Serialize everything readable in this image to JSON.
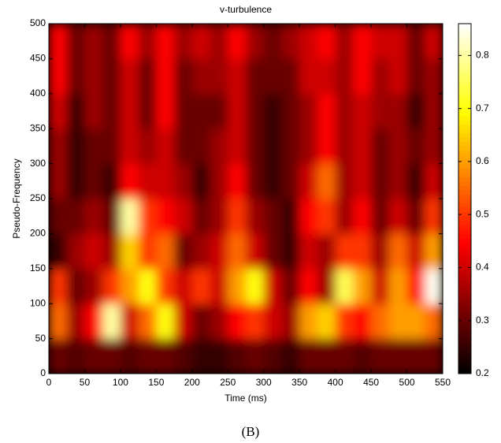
{
  "chart_data": {
    "type": "heatmap",
    "title": "v-turbulence",
    "xlabel": "Time (ms)",
    "ylabel": "Pseudo-Frequency",
    "caption": "(B)",
    "colormap": "hot",
    "xbins": [
      0,
      25,
      50,
      75,
      100,
      125,
      150,
      175,
      200,
      225,
      250,
      275,
      300,
      325,
      350,
      375,
      400,
      425,
      450,
      475,
      500,
      525,
      550
    ],
    "ybins": [
      0,
      50,
      100,
      150,
      200,
      250,
      300,
      350,
      400,
      450,
      500
    ],
    "values": [
      [
        0.3,
        0.28,
        0.3,
        0.3,
        0.28,
        0.3,
        0.3,
        0.28,
        0.25,
        0.25,
        0.28,
        0.3,
        0.28,
        0.25,
        0.3,
        0.3,
        0.3,
        0.28,
        0.3,
        0.3,
        0.3,
        0.3
      ],
      [
        0.55,
        0.35,
        0.45,
        0.8,
        0.4,
        0.55,
        0.7,
        0.4,
        0.3,
        0.35,
        0.45,
        0.5,
        0.4,
        0.35,
        0.6,
        0.65,
        0.5,
        0.45,
        0.55,
        0.6,
        0.6,
        0.55
      ],
      [
        0.5,
        0.3,
        0.35,
        0.5,
        0.6,
        0.7,
        0.5,
        0.4,
        0.5,
        0.4,
        0.6,
        0.7,
        0.4,
        0.3,
        0.45,
        0.35,
        0.75,
        0.6,
        0.4,
        0.6,
        0.45,
        0.85
      ],
      [
        0.25,
        0.35,
        0.4,
        0.35,
        0.65,
        0.5,
        0.55,
        0.3,
        0.35,
        0.4,
        0.55,
        0.4,
        0.3,
        0.25,
        0.4,
        0.35,
        0.5,
        0.5,
        0.35,
        0.55,
        0.4,
        0.6
      ],
      [
        0.3,
        0.3,
        0.35,
        0.3,
        0.8,
        0.5,
        0.45,
        0.4,
        0.3,
        0.35,
        0.5,
        0.35,
        0.3,
        0.25,
        0.45,
        0.5,
        0.35,
        0.45,
        0.3,
        0.4,
        0.3,
        0.5
      ],
      [
        0.35,
        0.25,
        0.3,
        0.25,
        0.45,
        0.4,
        0.4,
        0.35,
        0.25,
        0.35,
        0.45,
        0.3,
        0.25,
        0.3,
        0.4,
        0.55,
        0.35,
        0.4,
        0.3,
        0.35,
        0.25,
        0.4
      ],
      [
        0.35,
        0.25,
        0.3,
        0.3,
        0.4,
        0.35,
        0.4,
        0.3,
        0.3,
        0.35,
        0.4,
        0.3,
        0.25,
        0.3,
        0.35,
        0.45,
        0.35,
        0.4,
        0.3,
        0.35,
        0.3,
        0.35
      ],
      [
        0.4,
        0.25,
        0.35,
        0.3,
        0.4,
        0.3,
        0.45,
        0.3,
        0.3,
        0.3,
        0.4,
        0.3,
        0.25,
        0.3,
        0.35,
        0.45,
        0.35,
        0.4,
        0.35,
        0.35,
        0.25,
        0.35
      ],
      [
        0.45,
        0.3,
        0.35,
        0.3,
        0.4,
        0.3,
        0.45,
        0.3,
        0.35,
        0.35,
        0.4,
        0.3,
        0.3,
        0.3,
        0.4,
        0.4,
        0.35,
        0.45,
        0.35,
        0.4,
        0.3,
        0.35
      ],
      [
        0.45,
        0.3,
        0.35,
        0.3,
        0.45,
        0.35,
        0.45,
        0.35,
        0.4,
        0.35,
        0.45,
        0.35,
        0.3,
        0.35,
        0.4,
        0.45,
        0.35,
        0.45,
        0.4,
        0.4,
        0.3,
        0.4
      ]
    ],
    "xlim": [
      0,
      550
    ],
    "xticks": [
      0,
      50,
      100,
      150,
      200,
      250,
      300,
      350,
      400,
      450,
      500,
      550
    ],
    "ylim": [
      0,
      500
    ],
    "yticks": [
      0,
      50,
      100,
      150,
      200,
      250,
      300,
      350,
      400,
      450,
      500
    ],
    "clim": [
      0.2,
      0.86
    ],
    "cticks": [
      0.2,
      0.3,
      0.4,
      0.5,
      0.6,
      0.7,
      0.8
    ]
  }
}
